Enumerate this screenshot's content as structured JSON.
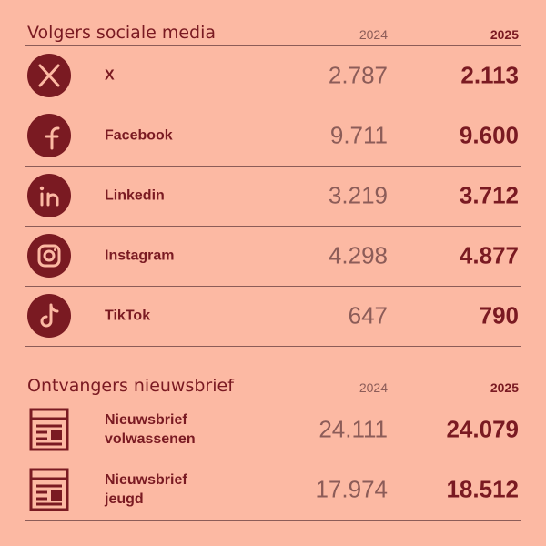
{
  "sections": [
    {
      "title": "Volgers sociale media",
      "col_2024": "2024",
      "col_2025": "2025",
      "rows": [
        {
          "label": "X",
          "v2024": "2.787",
          "v2025": "2.113"
        },
        {
          "label": "Facebook",
          "v2024": "9.711",
          "v2025": "9.600"
        },
        {
          "label": "Linkedin",
          "v2024": "3.219",
          "v2025": "3.712"
        },
        {
          "label": "Instagram",
          "v2024": "4.298",
          "v2025": "4.877"
        },
        {
          "label": "TikTok",
          "v2024": "647",
          "v2025": "790"
        }
      ]
    },
    {
      "title": "Ontvangers nieuwsbrief",
      "col_2024": "2024",
      "col_2025": "2025",
      "rows": [
        {
          "label": "Nieuwsbrief volwassenen",
          "v2024": "24.111",
          "v2025": "24.079"
        },
        {
          "label": "Nieuwsbrief jeugd",
          "v2024": "17.974",
          "v2025": "18.512"
        }
      ]
    }
  ]
}
